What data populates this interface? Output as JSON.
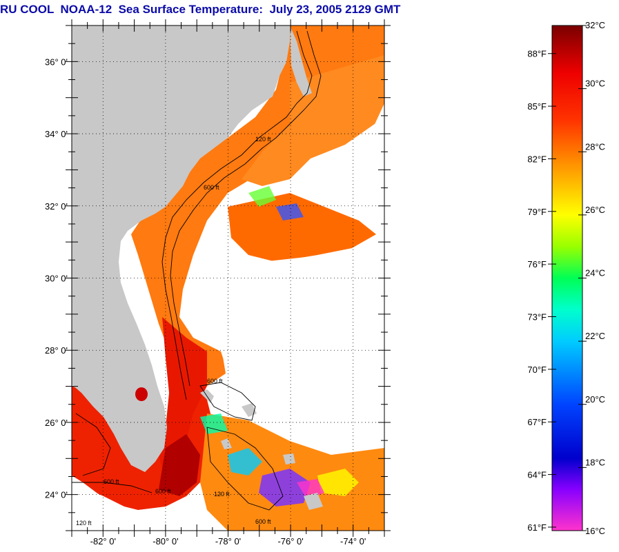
{
  "title": "RU COOL  NOAA-12  Sea Surface Temperature:  July 23, 2005 2129 GMT",
  "map": {
    "lat_labels": [
      {
        "value": 36,
        "text": "36° 0'"
      },
      {
        "value": 34,
        "text": "34° 0'"
      },
      {
        "value": 32,
        "text": "32° 0'"
      },
      {
        "value": 30,
        "text": "30° 0'"
      },
      {
        "value": 28,
        "text": "28° 0'"
      },
      {
        "value": 26,
        "text": "26° 0'"
      },
      {
        "value": 24,
        "text": "24° 0'"
      }
    ],
    "lon_labels": [
      {
        "value": -82,
        "text": "-82° 0'"
      },
      {
        "value": -80,
        "text": "-80° 0'"
      },
      {
        "value": -78,
        "text": "-78° 0'"
      },
      {
        "value": -76,
        "text": "-76° 0'"
      },
      {
        "value": -74,
        "text": "-74° 0'"
      }
    ],
    "lat_range": [
      23,
      37
    ],
    "lon_range": [
      -83,
      -73
    ],
    "grid": "dotted",
    "colors": {
      "land": "#c8c8c8",
      "cloud": "#ffffff",
      "contour": "#000000"
    }
  },
  "colorbar": {
    "celsius_labels": [
      {
        "value": 32,
        "text": "32°C"
      },
      {
        "value": 30,
        "text": "30°C"
      },
      {
        "value": 28,
        "text": "28°C"
      },
      {
        "value": 26,
        "text": "26°C"
      },
      {
        "value": 24,
        "text": "24°C"
      },
      {
        "value": 22,
        "text": "22°C"
      },
      {
        "value": 20,
        "text": "20°C"
      },
      {
        "value": 18,
        "text": "18°C"
      },
      {
        "value": 16,
        "text": "16°C"
      }
    ],
    "fahrenheit_labels": [
      {
        "value": 88,
        "text": "88°F"
      },
      {
        "value": 85,
        "text": "85°F"
      },
      {
        "value": 82,
        "text": "82°F"
      },
      {
        "value": 79,
        "text": "79°F"
      },
      {
        "value": 76,
        "text": "76°F"
      },
      {
        "value": 73,
        "text": "73°F"
      },
      {
        "value": 70,
        "text": "70°F"
      },
      {
        "value": 67,
        "text": "67°F"
      },
      {
        "value": 64,
        "text": "64°F"
      },
      {
        "value": 61,
        "text": "61°F"
      }
    ],
    "range_c": [
      16,
      32
    ],
    "stops": [
      {
        "c": 32,
        "color": "#7a0000"
      },
      {
        "c": 30.5,
        "color": "#ee0000"
      },
      {
        "c": 29,
        "color": "#ff3300"
      },
      {
        "c": 28,
        "color": "#ff7700"
      },
      {
        "c": 27,
        "color": "#ffbb00"
      },
      {
        "c": 26,
        "color": "#ffff00"
      },
      {
        "c": 25,
        "color": "#99ff00"
      },
      {
        "c": 24,
        "color": "#00ff55"
      },
      {
        "c": 23,
        "color": "#00ffcc"
      },
      {
        "c": 22,
        "color": "#00ccff"
      },
      {
        "c": 21,
        "color": "#0088ff"
      },
      {
        "c": 20,
        "color": "#0044ff"
      },
      {
        "c": 18.3,
        "color": "#0000cc"
      },
      {
        "c": 17.3,
        "color": "#8800ff"
      },
      {
        "c": 16,
        "color": "#ff33cc"
      }
    ]
  }
}
